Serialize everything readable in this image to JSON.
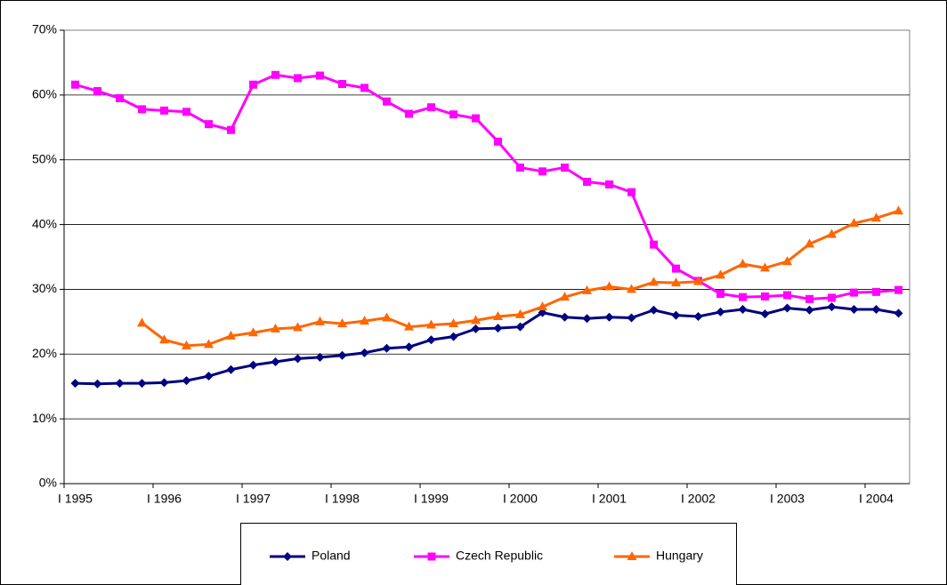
{
  "chart_data": {
    "type": "line",
    "categories": [
      "I 1995",
      null,
      null,
      null,
      "I 1996",
      null,
      null,
      null,
      "I 1997",
      null,
      null,
      null,
      "I 1998",
      null,
      null,
      null,
      "I 1999",
      null,
      null,
      null,
      "I 2000",
      null,
      null,
      null,
      "I 2001",
      null,
      null,
      null,
      "I 2002",
      null,
      null,
      null,
      "I 2003",
      null,
      null,
      null,
      "I 2004",
      null
    ],
    "series": [
      {
        "name": "Poland",
        "color": "#000080",
        "marker": "diamond",
        "values": [
          15.5,
          15.4,
          15.5,
          15.5,
          15.6,
          15.9,
          16.6,
          17.6,
          18.3,
          18.8,
          19.3,
          19.5,
          19.8,
          20.2,
          20.9,
          21.1,
          22.2,
          22.7,
          23.9,
          24.0,
          24.2,
          26.4,
          25.7,
          25.5,
          25.7,
          25.6,
          26.8,
          26.0,
          25.8,
          26.5,
          26.9,
          26.2,
          27.1,
          26.8,
          27.3,
          26.9,
          26.9,
          26.3
        ]
      },
      {
        "name": "Czech Republic",
        "color": "#ff00ff",
        "marker": "square",
        "values": [
          61.6,
          60.6,
          59.5,
          57.8,
          57.6,
          57.4,
          55.5,
          54.6,
          61.6,
          63.1,
          62.6,
          63.0,
          61.7,
          61.1,
          59.0,
          57.1,
          58.1,
          57.0,
          56.4,
          52.8,
          48.8,
          48.2,
          48.8,
          46.6,
          46.2,
          45.0,
          36.9,
          33.2,
          31.3,
          29.3,
          28.8,
          28.9,
          29.1,
          28.5,
          28.7,
          29.5,
          29.6,
          29.9
        ]
      },
      {
        "name": "Hungary",
        "color": "#ff6600",
        "marker": "triangle",
        "values": [
          null,
          null,
          null,
          24.8,
          22.2,
          21.3,
          21.5,
          22.8,
          23.3,
          23.9,
          24.1,
          25.0,
          24.7,
          25.1,
          25.6,
          24.2,
          24.5,
          24.7,
          25.2,
          25.8,
          26.1,
          27.3,
          28.8,
          29.8,
          30.4,
          30.0,
          31.1,
          31.0,
          31.2,
          32.2,
          33.9,
          33.3,
          34.3,
          37.0,
          38.5,
          40.2,
          41.0,
          42.1
        ]
      }
    ],
    "ylim": [
      0,
      70
    ],
    "yticks": [
      {
        "value": 0,
        "label": "0%"
      },
      {
        "value": 10,
        "label": "10%"
      },
      {
        "value": 20,
        "label": "20%"
      },
      {
        "value": 30,
        "label": "30%"
      },
      {
        "value": 40,
        "label": "40%"
      },
      {
        "value": 50,
        "label": "50%"
      },
      {
        "value": 60,
        "label": "60%"
      },
      {
        "value": 70,
        "label": "70%"
      }
    ],
    "grid": true,
    "legend": "bottom"
  }
}
